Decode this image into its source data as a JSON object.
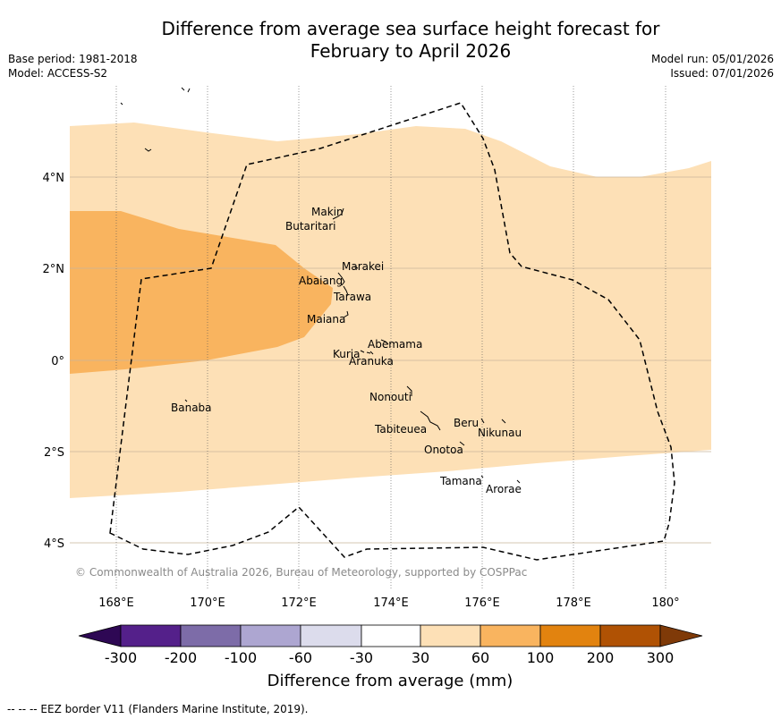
{
  "title": {
    "line1": "Difference from average sea surface height forecast for",
    "line2": "February to April 2026"
  },
  "meta_left": {
    "base_period": "Base period: 1981-2018",
    "model": "Model: ACCESS-S2"
  },
  "meta_right": {
    "model_run": "Model run: 05/01/2026",
    "issued": "Issued: 07/01/2026"
  },
  "map": {
    "credit": "© Commonwealth of Australia 2026, Bureau of Meteorology, supported by COSPPac",
    "lat_labels": [
      "4°N",
      "2°N",
      "0°",
      "2°S",
      "4°S"
    ],
    "lon_labels": [
      "168°E",
      "170°E",
      "172°E",
      "174°E",
      "176°E",
      "178°E",
      "180°"
    ],
    "places": [
      {
        "name": "Makin"
      },
      {
        "name": "Butaritari"
      },
      {
        "name": "Marakei"
      },
      {
        "name": "Abaiang"
      },
      {
        "name": "Tarawa"
      },
      {
        "name": "Maiana"
      },
      {
        "name": "Abemama"
      },
      {
        "name": "Kuria"
      },
      {
        "name": "Aranuka"
      },
      {
        "name": "Nonouti"
      },
      {
        "name": "Banaba"
      },
      {
        "name": "Beru"
      },
      {
        "name": "Tabiteuea"
      },
      {
        "name": "Nikunau"
      },
      {
        "name": "Onotoa"
      },
      {
        "name": "Tamana"
      },
      {
        "name": "Arorae"
      }
    ],
    "colors": {
      "band_30_60": "#fde0b6",
      "band_60_100": "#f9b45f",
      "grid": "#c8b49a",
      "eez": "#000000"
    }
  },
  "colorbar": {
    "title": "Difference from average (mm)",
    "ticks": [
      "-300",
      "-200",
      "-100",
      "-60",
      "-30",
      "30",
      "60",
      "100",
      "200",
      "300"
    ],
    "colors": [
      "#2e0854",
      "#54208a",
      "#7d6ca8",
      "#ada6d1",
      "#dcdcec",
      "#ffffff",
      "#fde0b6",
      "#f9b45f",
      "#e2830f",
      "#b05204",
      "#7f3a08"
    ]
  },
  "footer": "--  --  -- EEZ border V11 (Flanders Marine Institute, 2019)."
}
